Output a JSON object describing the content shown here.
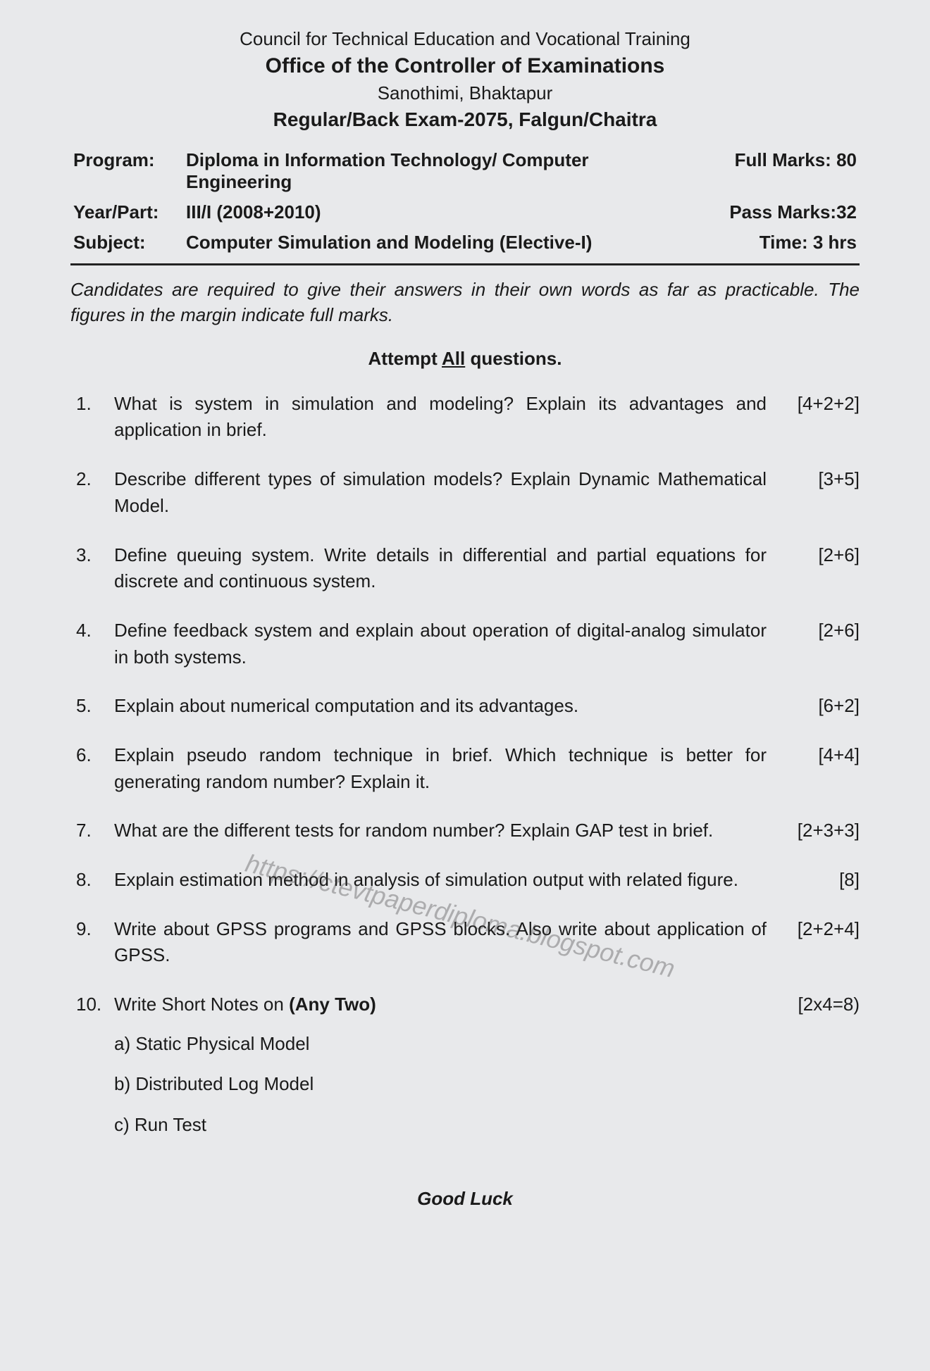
{
  "header": {
    "council": "Council for Technical Education and Vocational Training",
    "office": "Office of the Controller of Examinations",
    "location": "Sanothimi, Bhaktapur",
    "exam": "Regular/Back Exam-2075, Falgun/Chaitra"
  },
  "info": {
    "program_label": "Program:",
    "program_value": "Diploma in Information Technology/ Computer Engineering",
    "full_marks": "Full Marks: 80",
    "year_label": "Year/Part:",
    "year_value": "III/I (2008+2010)",
    "pass_marks": "Pass Marks:32",
    "subject_label": "Subject:",
    "subject_value": "Computer Simulation and Modeling (Elective-I)",
    "time": "Time: 3 hrs"
  },
  "instructions": "Candidates are required to give their answers in their own words as far as practicable. The figures in the margin indicate full marks.",
  "attempt_prefix": "Attempt ",
  "attempt_word": "All",
  "attempt_suffix": " questions.",
  "questions": [
    {
      "num": "1.",
      "text": "What is system in simulation and modeling? Explain its advantages and application in brief.",
      "marks": "[4+2+2]"
    },
    {
      "num": "2.",
      "text": "Describe different types of simulation models? Explain Dynamic Mathematical Model.",
      "marks": "[3+5]"
    },
    {
      "num": "3.",
      "text": "Define queuing system. Write details in differential and partial equations for discrete and continuous system.",
      "marks": "[2+6]"
    },
    {
      "num": "4.",
      "text": "Define feedback system and explain about operation of digital-analog simulator in both systems.",
      "marks": "[2+6]"
    },
    {
      "num": "5.",
      "text": "Explain about numerical computation and its advantages.",
      "marks": "[6+2]"
    },
    {
      "num": "6.",
      "text": "Explain pseudo random technique in brief. Which technique is better for generating random number? Explain it.",
      "marks": "[4+4]"
    },
    {
      "num": "7.",
      "text": "What are the different tests for random number? Explain GAP test in brief.",
      "marks": "[2+3+3]"
    },
    {
      "num": "8.",
      "text": "Explain estimation method in analysis of simulation output with related figure.",
      "marks": "[8]"
    },
    {
      "num": "9.",
      "text": "Write about GPSS programs and GPSS blocks. Also write about application of GPSS.",
      "marks": "[2+2+4]"
    }
  ],
  "q10": {
    "num": "10.",
    "text_prefix": "Write Short Notes on ",
    "text_bold": "(Any Two)",
    "marks": "[2x4=8)",
    "options": [
      "a) Static Physical Model",
      "b) Distributed Log Model",
      "c) Run Test"
    ]
  },
  "footer": "Good Luck",
  "watermark": "https://ctevtpaperdiploma.blogspot.com"
}
